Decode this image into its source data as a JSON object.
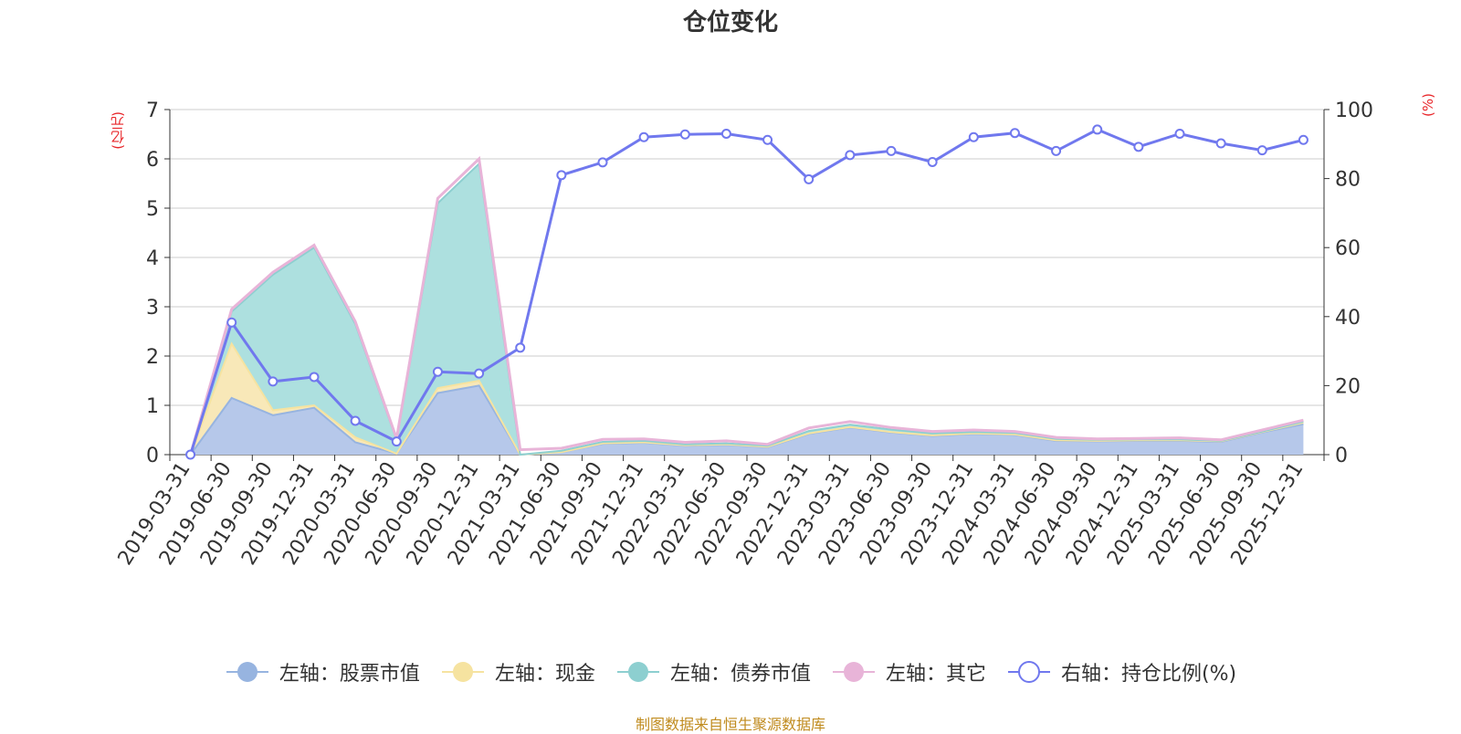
{
  "title": "仓位变化",
  "source_note": "制图数据来自恒生聚源数据库",
  "chart_data": {
    "type": "area",
    "title": "仓位变化",
    "left_axis": {
      "unit": "(亿元)",
      "ylim": [
        0,
        7
      ],
      "ticks": [
        0,
        1,
        2,
        3,
        4,
        5,
        6,
        7
      ]
    },
    "right_axis": {
      "unit": "(%)",
      "ylim": [
        0,
        100
      ],
      "ticks": [
        0,
        20,
        40,
        60,
        80,
        100
      ]
    },
    "grid": true,
    "legend_position": "bottom",
    "categories": [
      "2019-03-31",
      "2019-06-30",
      "2019-09-30",
      "2019-12-31",
      "2020-03-31",
      "2020-06-30",
      "2020-09-30",
      "2020-12-31",
      "2021-03-31",
      "2021-06-30",
      "2021-09-30",
      "2021-12-31",
      "2022-03-31",
      "2022-06-30",
      "2022-09-30",
      "2022-12-31",
      "2023-03-31",
      "2023-06-30",
      "2023-09-30",
      "2023-12-31",
      "2024-03-31",
      "2024-06-30",
      "2024-09-30",
      "2024-12-31",
      "2025-03-31",
      "2025-06-30",
      "2025-09-30",
      "2025-12-31"
    ],
    "series": [
      {
        "name": "左轴：股票市值",
        "axis": "left",
        "kind": "stacked-area",
        "color": "#97b4e0",
        "fill": "#b6c8ea",
        "values": [
          0,
          1.15,
          0.8,
          0.95,
          0.25,
          0.02,
          1.25,
          1.4,
          0,
          0.05,
          0.22,
          0.24,
          0.18,
          0.2,
          0.15,
          0.42,
          0.55,
          0.45,
          0.38,
          0.42,
          0.4,
          0.28,
          0.27,
          0.28,
          0.28,
          0.26,
          0.45,
          0.62
        ]
      },
      {
        "name": "左轴：现金",
        "axis": "left",
        "kind": "stacked-area",
        "color": "#f6e3a0",
        "fill": "#f8e8b8",
        "values": [
          0,
          1.1,
          0.1,
          0.05,
          0.1,
          0,
          0.1,
          0.1,
          0,
          0,
          0.01,
          0.01,
          0.01,
          0.01,
          0.01,
          0.01,
          0.01,
          0.01,
          0.01,
          0.01,
          0.01,
          0.01,
          0.01,
          0.01,
          0.01,
          0.01,
          0.01,
          0.03
        ]
      },
      {
        "name": "左轴：债券市值",
        "axis": "left",
        "kind": "stacked-area",
        "color": "#8dcfd0",
        "fill": "#ade0df",
        "values": [
          0,
          0.65,
          2.75,
          3.2,
          2.3,
          0.28,
          3.75,
          4.4,
          0,
          0.03,
          0.03,
          0.03,
          0.02,
          0.02,
          0.02,
          0.05,
          0.05,
          0.05,
          0.04,
          0.03,
          0.03,
          0.03,
          0.02,
          0.02,
          0.02,
          0.01,
          0.01,
          0.02
        ]
      },
      {
        "name": "左轴：其它",
        "axis": "left",
        "kind": "stacked-line",
        "color": "#e8b4d8",
        "fill": "none",
        "values": [
          0,
          0.05,
          0.05,
          0.05,
          0.05,
          0.03,
          0.1,
          0.1,
          0.1,
          0.05,
          0.05,
          0.04,
          0.04,
          0.05,
          0.03,
          0.06,
          0.06,
          0.04,
          0.04,
          0.04,
          0.03,
          0.03,
          0.02,
          0.02,
          0.03,
          0.02,
          0.03,
          0.03
        ]
      },
      {
        "name": "右轴：持仓比例(%)",
        "axis": "right",
        "kind": "line-markers",
        "color": "#7078ee",
        "values": [
          0,
          38.3,
          21.2,
          22.5,
          9.8,
          3.8,
          24.0,
          23.5,
          31.0,
          81.0,
          84.7,
          92.0,
          92.8,
          93.0,
          91.2,
          79.8,
          86.8,
          88.0,
          84.8,
          92.0,
          93.2,
          88.0,
          94.2,
          89.2,
          93.0,
          90.2,
          88.2,
          91.2
        ]
      }
    ]
  }
}
